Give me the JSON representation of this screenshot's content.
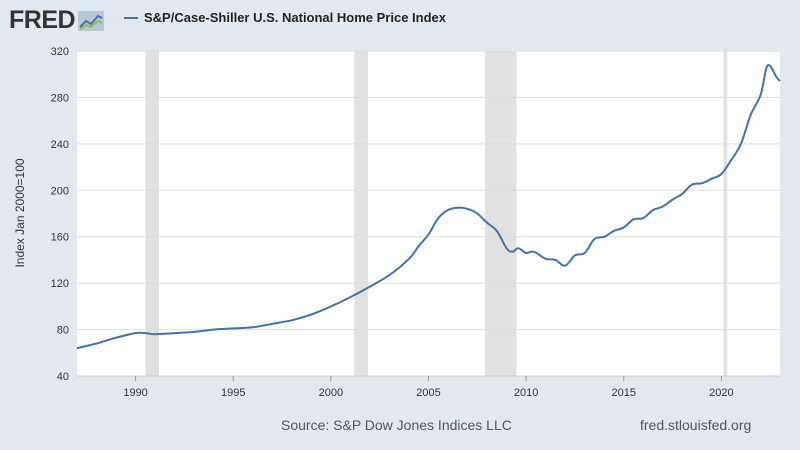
{
  "header": {
    "logo_text": "FRED",
    "logo_icon": "fred-graph-icon"
  },
  "footer": {
    "source": "Source: S&P Dow Jones Indices LLC",
    "site": "fred.stlouisfed.org"
  },
  "colors": {
    "background": "#e1e9f0",
    "plot_background": "#ffffff",
    "series": "#4572a7",
    "recession": "#e1e1e1",
    "grid": "#dddddd"
  },
  "chart_data": {
    "type": "line",
    "title": "",
    "xlabel": "",
    "ylabel": "Index Jan 2000=100",
    "xlim": [
      1987.0,
      2023.0
    ],
    "ylim": [
      40,
      320
    ],
    "yticks": [
      40,
      80,
      120,
      160,
      200,
      240,
      280,
      320
    ],
    "xticks": [
      1990,
      1995,
      2000,
      2005,
      2010,
      2015,
      2020
    ],
    "grid": "horizontal",
    "legend": "top-left",
    "recessions": [
      [
        1990.5,
        1991.2
      ],
      [
        2001.2,
        2001.9
      ],
      [
        2007.9,
        2009.5
      ],
      [
        2020.1,
        2020.3
      ]
    ],
    "series": [
      {
        "name": "S&P/Case-Shiller U.S. National Home Price Index",
        "x": [
          1987.0,
          1988.0,
          1989.0,
          1990.0,
          1990.5,
          1991.0,
          1992.0,
          1993.0,
          1994.0,
          1995.0,
          1996.0,
          1997.0,
          1998.0,
          1999.0,
          2000.0,
          2001.0,
          2002.0,
          2003.0,
          2004.0,
          2004.5,
          2005.0,
          2005.5,
          2006.0,
          2006.5,
          2007.0,
          2007.5,
          2008.0,
          2008.5,
          2009.0,
          2009.3,
          2009.6,
          2010.0,
          2010.4,
          2011.0,
          2011.5,
          2012.0,
          2012.5,
          2013.0,
          2013.5,
          2014.0,
          2014.5,
          2015.0,
          2015.5,
          2016.0,
          2016.5,
          2017.0,
          2017.5,
          2018.0,
          2018.5,
          2019.0,
          2019.5,
          2020.0,
          2020.5,
          2021.0,
          2021.5,
          2022.0,
          2022.3,
          2022.5,
          2022.8,
          2023.0
        ],
        "values": [
          64,
          68,
          73,
          77,
          77,
          76,
          77,
          78,
          80,
          81,
          82,
          85,
          88,
          93,
          100,
          108,
          117,
          127,
          141,
          152,
          162,
          176,
          183,
          185,
          184,
          180,
          172,
          165,
          150,
          147,
          150,
          146,
          147,
          141,
          140,
          135,
          144,
          146,
          158,
          160,
          165,
          168,
          175,
          176,
          183,
          186,
          192,
          197,
          205,
          206,
          210,
          214,
          226,
          240,
          265,
          282,
          305,
          307,
          298,
          294
        ]
      }
    ]
  }
}
